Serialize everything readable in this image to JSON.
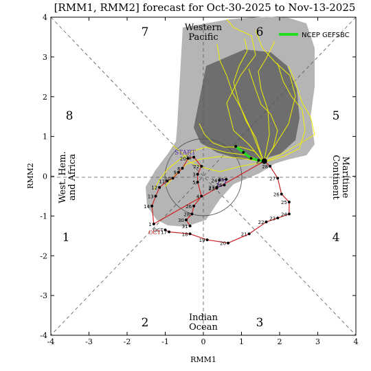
{
  "chart_data": {
    "type": "scatter",
    "title": "[RMM1, RMM2] forecast for Oct-30-2025 to Nov-13-2025",
    "xlabel": "RMM1",
    "ylabel": "RMM2",
    "xlim": [
      -4,
      4
    ],
    "ylim": [
      -4,
      4
    ],
    "xticks": [
      "-4",
      "-3",
      "-2",
      "-1",
      "0",
      "1",
      "2",
      "3",
      "4"
    ],
    "yticks": [
      "-4",
      "-3",
      "-2",
      "-1",
      "0",
      "1",
      "2",
      "3",
      "4"
    ],
    "grid": false,
    "legend_position": "top-right",
    "legend": {
      "label": "NCEP GEFSBC",
      "color": "#22dd22"
    },
    "phases": [
      "1",
      "2",
      "3",
      "4",
      "5",
      "6",
      "7",
      "8"
    ],
    "regions": {
      "top": [
        "Western",
        "Pacific"
      ],
      "bottom": [
        "Indian",
        "Ocean"
      ],
      "left": [
        "West. Hem.",
        "and Africa"
      ],
      "right": [
        "Maritime",
        "Continent"
      ]
    },
    "start_label": "START",
    "month_label": "OCT",
    "colors": {
      "observed_line": "#cc2222",
      "observed_recent": "#5b2ea6",
      "ensemble_member": "#f0f000",
      "ensemble_mean": "#22dd22",
      "outer_spread": "#b5b5b5",
      "inner_spread": "#6e6e6e"
    },
    "observed": [
      {
        "day": "OCT",
        "x": -1.0,
        "y": -1.35
      },
      {
        "day": "17",
        "x": -0.9,
        "y": -1.4
      },
      {
        "day": "18",
        "x": -0.35,
        "y": -1.45
      },
      {
        "day": "19",
        "x": 0.1,
        "y": -1.6
      },
      {
        "day": "20",
        "x": 0.65,
        "y": -1.68
      },
      {
        "day": "21",
        "x": 1.2,
        "y": -1.45
      },
      {
        "day": "22",
        "x": 1.65,
        "y": -1.15
      },
      {
        "day": "23",
        "x": 1.95,
        "y": -1.05
      },
      {
        "day": "24",
        "x": 2.25,
        "y": -0.95
      },
      {
        "day": "25",
        "x": 2.25,
        "y": -0.65
      },
      {
        "day": "26",
        "x": 2.05,
        "y": -0.45
      },
      {
        "day": "27",
        "x": 1.95,
        "y": -0.05
      },
      {
        "day": "28",
        "x": 1.75,
        "y": 0.25
      },
      {
        "day": "29",
        "x": 1.6,
        "y": 0.38
      },
      {
        "day": "1",
        "x": -1.3,
        "y": -1.2
      },
      {
        "day": "14",
        "x": -1.35,
        "y": -0.75
      },
      {
        "day": "13",
        "x": -1.25,
        "y": -0.5
      },
      {
        "day": "12",
        "x": -1.15,
        "y": -0.28
      },
      {
        "day": "11",
        "x": -0.95,
        "y": -0.12
      },
      {
        "day": "10",
        "x": -0.8,
        "y": -0.05
      },
      {
        "day": "9",
        "x": -0.65,
        "y": 0.1
      },
      {
        "day": "8",
        "x": -0.55,
        "y": 0.2
      },
      {
        "day": "20",
        "x": -0.4,
        "y": 0.45
      },
      {
        "day": "21",
        "x": -0.25,
        "y": 0.48
      },
      {
        "day": "22",
        "x": -0.05,
        "y": 0.25
      },
      {
        "day": "3",
        "x": -0.15,
        "y": 0.05
      },
      {
        "day": "5",
        "x": -0.15,
        "y": -0.15
      },
      {
        "day": "4",
        "x": -0.05,
        "y": -0.5
      },
      {
        "day": "26",
        "x": -0.25,
        "y": -0.75
      },
      {
        "day": "28",
        "x": -0.3,
        "y": -0.95
      },
      {
        "day": "30",
        "x": -0.45,
        "y": -1.1
      },
      {
        "day": "31",
        "x": -0.35,
        "y": -1.25
      }
    ],
    "recent": [
      {
        "day": "23",
        "x": 0.35,
        "y": -0.3
      },
      {
        "day": "24",
        "x": 0.42,
        "y": -0.1
      },
      {
        "day": "25",
        "x": 0.6,
        "y": -0.08
      },
      {
        "day": "26",
        "x": 0.55,
        "y": -0.22
      },
      {
        "day": "27",
        "x": 0.35,
        "y": -0.28
      }
    ],
    "ensemble_mean": [
      {
        "x": 0.85,
        "y": 0.75
      },
      {
        "x": 1.05,
        "y": 0.6
      },
      {
        "x": 1.25,
        "y": 0.45
      },
      {
        "x": 1.45,
        "y": 0.4
      },
      {
        "x": 1.6,
        "y": 0.38
      }
    ]
  }
}
